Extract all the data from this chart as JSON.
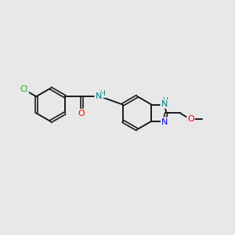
{
  "background_color": "#e8e8e8",
  "bond_color": "#1a1a1a",
  "atom_colors": {
    "Cl": "#00bb00",
    "N": "#0000ee",
    "O": "#ee0000",
    "NH": "#008080",
    "C": "#1a1a1a"
  },
  "figsize": [
    3.0,
    3.0
  ],
  "dpi": 100
}
